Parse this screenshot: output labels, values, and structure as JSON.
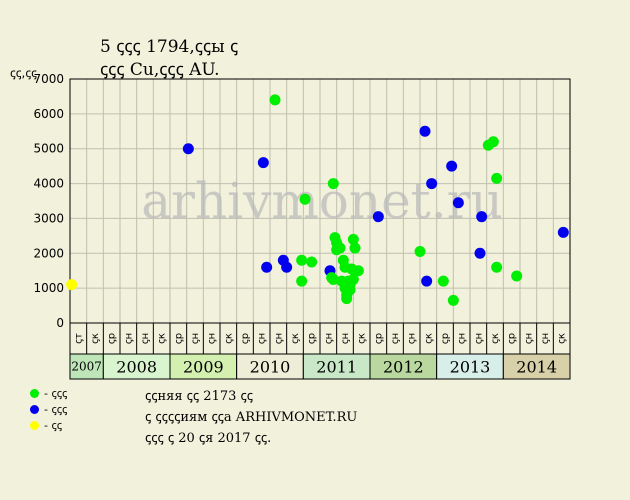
{
  "title_line1": "5 ꞔꞔꞔ 1794,ꞔꞔы ꞔ",
  "title_line2": "ꞔꞔꞔ Cu,ꞔꞔꞔ AU.",
  "ylabel": "ꞔꞔ,ꞔꞔ",
  "watermark": "arhivmonet.ru",
  "legend": [
    {
      "label": "- ꞔꞔꞔ",
      "color": "#00ee00"
    },
    {
      "label": "- ꞔꞔꞔ",
      "color": "#0000ee"
    },
    {
      "label": "- ꞔꞔ",
      "color": "#ffff00"
    }
  ],
  "notes": [
    "ꞔꞔняя ꞔꞔ 2173 ꞔꞔ",
    "ꞔ ꞔꞔꞔꞔиям ꞔꞔа ARHIVMONET.RU",
    "ꞔꞔꞔ ꞔ 20 ꞔя 2017 ꞔꞔ."
  ],
  "chart_data": {
    "type": "scatter",
    "ylim": [
      0,
      7000
    ],
    "yticks": [
      0,
      1000,
      2000,
      3000,
      4000,
      5000,
      6000,
      7000
    ],
    "grid": true,
    "months": [
      "ꞔт",
      "ꞔк",
      "ꞔр",
      "ꞔн",
      "ꞔн",
      "ꞔк",
      "ꞔр",
      "ꞔн",
      "ꞔн",
      "ꞔк",
      "ꞔр",
      "ꞔн",
      "ꞔн",
      "ꞔк",
      "ꞔр",
      "ꞔн",
      "ꞔн",
      "ꞔк",
      "ꞔр",
      "ꞔн",
      "ꞔн",
      "ꞔк",
      "ꞔр",
      "ꞔн",
      "ꞔн",
      "ꞔк",
      "ꞔр",
      "ꞔн",
      "ꞔн",
      "ꞔк"
    ],
    "years": [
      {
        "label": "2007",
        "start": 0,
        "span": 2,
        "color": "#bfe6b8"
      },
      {
        "label": "2008",
        "start": 2,
        "span": 4,
        "color": "#d9f5d0"
      },
      {
        "label": "2009",
        "start": 6,
        "span": 4,
        "color": "#d4f0b0"
      },
      {
        "label": "2010",
        "start": 10,
        "span": 4,
        "color": "#eeeed8"
      },
      {
        "label": "2011",
        "start": 14,
        "span": 4,
        "color": "#c8e8c8"
      },
      {
        "label": "2012",
        "start": 18,
        "span": 4,
        "color": "#b8d8a0"
      },
      {
        "label": "2013",
        "start": 22,
        "span": 4,
        "color": "#d8eee8"
      },
      {
        "label": "2014",
        "start": 26,
        "span": 4,
        "color": "#d8d0a8"
      }
    ],
    "points": [
      {
        "x": 0.1,
        "y": 1100,
        "cat": "yellow"
      },
      {
        "x": 7.1,
        "y": 5000,
        "cat": "blue"
      },
      {
        "x": 11.6,
        "y": 4600,
        "cat": "blue"
      },
      {
        "x": 11.8,
        "y": 1600,
        "cat": "blue"
      },
      {
        "x": 12.3,
        "y": 6400,
        "cat": "green"
      },
      {
        "x": 12.8,
        "y": 1800,
        "cat": "blue"
      },
      {
        "x": 13.0,
        "y": 1600,
        "cat": "blue"
      },
      {
        "x": 13.9,
        "y": 1800,
        "cat": "green"
      },
      {
        "x": 13.9,
        "y": 1200,
        "cat": "green"
      },
      {
        "x": 14.1,
        "y": 3550,
        "cat": "green"
      },
      {
        "x": 14.5,
        "y": 1750,
        "cat": "green"
      },
      {
        "x": 15.6,
        "y": 1500,
        "cat": "blue"
      },
      {
        "x": 15.7,
        "y": 1300,
        "cat": "green"
      },
      {
        "x": 15.8,
        "y": 1250,
        "cat": "green"
      },
      {
        "x": 15.8,
        "y": 4000,
        "cat": "green"
      },
      {
        "x": 15.9,
        "y": 2450,
        "cat": "green"
      },
      {
        "x": 16.0,
        "y": 2300,
        "cat": "green"
      },
      {
        "x": 16.0,
        "y": 2100,
        "cat": "green"
      },
      {
        "x": 16.2,
        "y": 2150,
        "cat": "green"
      },
      {
        "x": 16.3,
        "y": 1200,
        "cat": "green"
      },
      {
        "x": 16.4,
        "y": 1800,
        "cat": "green"
      },
      {
        "x": 16.5,
        "y": 1600,
        "cat": "green"
      },
      {
        "x": 16.5,
        "y": 1000,
        "cat": "green"
      },
      {
        "x": 16.6,
        "y": 800,
        "cat": "green"
      },
      {
        "x": 16.6,
        "y": 700,
        "cat": "green"
      },
      {
        "x": 16.7,
        "y": 1200,
        "cat": "green"
      },
      {
        "x": 16.8,
        "y": 1100,
        "cat": "green"
      },
      {
        "x": 16.8,
        "y": 950,
        "cat": "green"
      },
      {
        "x": 16.9,
        "y": 1550,
        "cat": "green"
      },
      {
        "x": 17.0,
        "y": 2400,
        "cat": "green"
      },
      {
        "x": 17.0,
        "y": 1250,
        "cat": "green"
      },
      {
        "x": 17.1,
        "y": 2150,
        "cat": "green"
      },
      {
        "x": 17.3,
        "y": 1500,
        "cat": "green"
      },
      {
        "x": 18.5,
        "y": 3050,
        "cat": "blue"
      },
      {
        "x": 21.0,
        "y": 2050,
        "cat": "green"
      },
      {
        "x": 21.3,
        "y": 5500,
        "cat": "blue"
      },
      {
        "x": 21.4,
        "y": 1200,
        "cat": "blue"
      },
      {
        "x": 21.7,
        "y": 4000,
        "cat": "blue"
      },
      {
        "x": 22.4,
        "y": 1200,
        "cat": "green"
      },
      {
        "x": 22.9,
        "y": 4500,
        "cat": "blue"
      },
      {
        "x": 23.0,
        "y": 650,
        "cat": "green"
      },
      {
        "x": 23.3,
        "y": 3450,
        "cat": "blue"
      },
      {
        "x": 24.6,
        "y": 2000,
        "cat": "blue"
      },
      {
        "x": 24.7,
        "y": 3050,
        "cat": "blue"
      },
      {
        "x": 25.1,
        "y": 5100,
        "cat": "green"
      },
      {
        "x": 25.4,
        "y": 5200,
        "cat": "green"
      },
      {
        "x": 25.6,
        "y": 4150,
        "cat": "green"
      },
      {
        "x": 25.6,
        "y": 1600,
        "cat": "green"
      },
      {
        "x": 26.8,
        "y": 1350,
        "cat": "green"
      },
      {
        "x": 29.6,
        "y": 2600,
        "cat": "blue"
      }
    ]
  }
}
